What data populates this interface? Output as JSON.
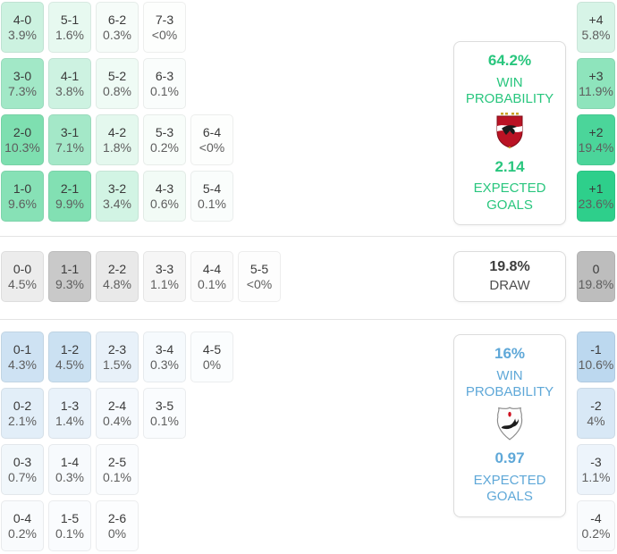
{
  "sections": {
    "home": {
      "accent": "#29c67e",
      "panel": {
        "win_probability": "64.2%",
        "win_label_line1": "WIN",
        "win_label_line2": "PROBABILITY",
        "expected_goals": "2.14",
        "eg_label_line1": "EXPECTED",
        "eg_label_line2": "GOALS",
        "crest": "al-ahly-red-eagle-crest"
      },
      "rows": [
        [
          {
            "score": "4-0",
            "pct": "3.9%",
            "bg": "#ccf2e0"
          },
          {
            "score": "5-1",
            "pct": "1.6%",
            "bg": "#e7f9f0"
          },
          {
            "score": "6-2",
            "pct": "0.3%",
            "bg": "#f6fcf9"
          },
          {
            "score": "7-3",
            "pct": "<0%",
            "bg": "#fdfefd"
          }
        ],
        [
          {
            "score": "3-0",
            "pct": "7.3%",
            "bg": "#a2e8c7"
          },
          {
            "score": "4-1",
            "pct": "3.8%",
            "bg": "#cdf2e1"
          },
          {
            "score": "5-2",
            "pct": "0.8%",
            "bg": "#effbf5"
          },
          {
            "score": "6-3",
            "pct": "0.1%",
            "bg": "#fafdfc"
          }
        ],
        [
          {
            "score": "2-0",
            "pct": "10.3%",
            "bg": "#7edfb0"
          },
          {
            "score": "3-1",
            "pct": "7.1%",
            "bg": "#a4e8c8"
          },
          {
            "score": "4-2",
            "pct": "1.8%",
            "bg": "#e4f8ee"
          },
          {
            "score": "5-3",
            "pct": "0.2%",
            "bg": "#f8fdfa"
          },
          {
            "score": "6-4",
            "pct": "<0%",
            "bg": "#fdfefd"
          }
        ],
        [
          {
            "score": "1-0",
            "pct": "9.6%",
            "bg": "#87e1b6"
          },
          {
            "score": "2-1",
            "pct": "9.9%",
            "bg": "#82e0b3"
          },
          {
            "score": "3-2",
            "pct": "3.4%",
            "bg": "#d2f4e4"
          },
          {
            "score": "4-3",
            "pct": "0.6%",
            "bg": "#f2fbf6"
          },
          {
            "score": "5-4",
            "pct": "0.1%",
            "bg": "#fafdfc"
          }
        ]
      ],
      "margins": [
        {
          "score": "+4",
          "pct": "5.8%",
          "bg": "#d7f4e7"
        },
        {
          "score": "+3",
          "pct": "11.9%",
          "bg": "#8ee4bc"
        },
        {
          "score": "+2",
          "pct": "19.4%",
          "bg": "#4bd59a"
        },
        {
          "score": "+1",
          "pct": "23.6%",
          "bg": "#2ecf8b"
        }
      ]
    },
    "draw": {
      "panel": {
        "probability": "19.8%",
        "label": "DRAW"
      },
      "rows": [
        [
          {
            "score": "0-0",
            "pct": "4.5%",
            "bg": "#ececec"
          },
          {
            "score": "1-1",
            "pct": "9.3%",
            "bg": "#c9c9c9"
          },
          {
            "score": "2-2",
            "pct": "4.8%",
            "bg": "#e9e9e9"
          },
          {
            "score": "3-3",
            "pct": "1.1%",
            "bg": "#f6f6f6"
          },
          {
            "score": "4-4",
            "pct": "0.1%",
            "bg": "#fbfbfb"
          },
          {
            "score": "5-5",
            "pct": "<0%",
            "bg": "#fdfdfd"
          }
        ]
      ],
      "margins": [
        {
          "score": "0",
          "pct": "19.8%",
          "bg": "#bdbdbd"
        }
      ]
    },
    "away": {
      "accent": "#5fa8d8",
      "panel": {
        "win_probability": "16%",
        "win_label_line1": "WIN",
        "win_label_line2": "PROBABILITY",
        "expected_goals": "0.97",
        "eg_label_line1": "EXPECTED",
        "eg_label_line2": "GOALS",
        "crest": "white-shield-red-flame-crest"
      },
      "rows": [
        [
          {
            "score": "0-1",
            "pct": "4.3%",
            "bg": "#cee2f3"
          },
          {
            "score": "1-2",
            "pct": "4.5%",
            "bg": "#cbe1f2"
          },
          {
            "score": "2-3",
            "pct": "1.5%",
            "bg": "#e8f1f9"
          },
          {
            "score": "3-4",
            "pct": "0.3%",
            "bg": "#f6fafd"
          },
          {
            "score": "4-5",
            "pct": "0%",
            "bg": "#fbfdfe"
          }
        ],
        [
          {
            "score": "0-2",
            "pct": "2.1%",
            "bg": "#e2eef8"
          },
          {
            "score": "1-3",
            "pct": "1.4%",
            "bg": "#e9f2fa"
          },
          {
            "score": "2-4",
            "pct": "0.4%",
            "bg": "#f5f9fd"
          },
          {
            "score": "3-5",
            "pct": "0.1%",
            "bg": "#fafcfe"
          }
        ],
        [
          {
            "score": "0-3",
            "pct": "0.7%",
            "bg": "#f1f7fb"
          },
          {
            "score": "1-4",
            "pct": "0.3%",
            "bg": "#f7fafd"
          },
          {
            "score": "2-5",
            "pct": "0.1%",
            "bg": "#fafcfe"
          }
        ],
        [
          {
            "score": "0-4",
            "pct": "0.2%",
            "bg": "#f9fbfd"
          },
          {
            "score": "1-5",
            "pct": "0.1%",
            "bg": "#fafcfe"
          },
          {
            "score": "2-6",
            "pct": "0%",
            "bg": "#fcfdfe"
          }
        ]
      ],
      "margins": [
        {
          "score": "-1",
          "pct": "10.6%",
          "bg": "#bcd8ef"
        },
        {
          "score": "-2",
          "pct": "4%",
          "bg": "#d8e8f6"
        },
        {
          "score": "-3",
          "pct": "1.1%",
          "bg": "#edf4fb"
        },
        {
          "score": "-4",
          "pct": "0.2%",
          "bg": "#f9fbfd"
        }
      ]
    }
  },
  "chart_data": {
    "type": "heatmap",
    "title": "Correct score and win probability matrix",
    "home_team": {
      "win_probability_pct": 64.2,
      "expected_goals": 2.14,
      "score_probabilities_pct": {
        "4-0": 3.9,
        "5-1": 1.6,
        "6-2": 0.3,
        "7-3": "<0",
        "3-0": 7.3,
        "4-1": 3.8,
        "5-2": 0.8,
        "6-3": 0.1,
        "2-0": 10.3,
        "3-1": 7.1,
        "4-2": 1.8,
        "5-3": 0.2,
        "6-4": "<0",
        "1-0": 9.6,
        "2-1": 9.9,
        "3-2": 3.4,
        "4-3": 0.6,
        "5-4": 0.1
      },
      "goal_margin_probabilities_pct": {
        "+4": 5.8,
        "+3": 11.9,
        "+2": 19.4,
        "+1": 23.6
      }
    },
    "draw": {
      "probability_pct": 19.8,
      "score_probabilities_pct": {
        "0-0": 4.5,
        "1-1": 9.3,
        "2-2": 4.8,
        "3-3": 1.1,
        "4-4": 0.1,
        "5-5": "<0"
      },
      "goal_margin_probabilities_pct": {
        "0": 19.8
      }
    },
    "away_team": {
      "win_probability_pct": 16,
      "expected_goals": 0.97,
      "score_probabilities_pct": {
        "0-1": 4.3,
        "1-2": 4.5,
        "2-3": 1.5,
        "3-4": 0.3,
        "4-5": 0,
        "0-2": 2.1,
        "1-3": 1.4,
        "2-4": 0.4,
        "3-5": 0.1,
        "0-3": 0.7,
        "1-4": 0.3,
        "2-5": 0.1,
        "0-4": 0.2,
        "1-5": 0.1,
        "2-6": 0
      },
      "goal_margin_probabilities_pct": {
        "-1": 10.6,
        "-2": 4,
        "-3": 1.1,
        "-4": 0.2
      }
    },
    "legend_position": "none",
    "grid": false,
    "color_scales": {
      "home_win": "#2ecf8b",
      "draw": "#bdbdbd",
      "away_win": "#bcd8ef"
    }
  }
}
